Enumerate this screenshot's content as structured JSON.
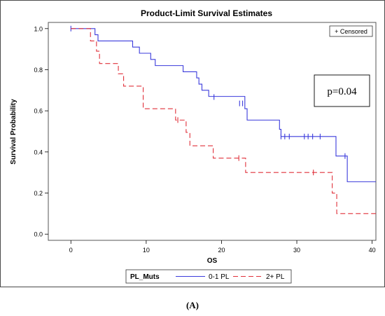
{
  "panel_label": "(A)",
  "chart_data": {
    "type": "line",
    "title": "Product-Limit Survival Estimates",
    "xlabel": "OS",
    "ylabel": "Survival Probability",
    "xlim": [
      -3,
      40.5
    ],
    "ylim": [
      -0.03,
      1.03
    ],
    "x_ticks": [
      0,
      10,
      20,
      30,
      40
    ],
    "x_tick_labels": [
      "0",
      "10",
      "20",
      "30",
      "40"
    ],
    "y_ticks": [
      0.0,
      0.2,
      0.4,
      0.6,
      0.8,
      1.0
    ],
    "y_tick_labels": [
      "0.0",
      "0.2",
      "0.4",
      "0.6",
      "0.8",
      "1.0"
    ],
    "grid": false,
    "censored_legend": "+ Censored",
    "annotation": "p=0.04",
    "legend": {
      "title": "PL_Muts",
      "position": "bottom"
    },
    "series": [
      {
        "name": "0-1 PL",
        "color": "#3b3bdc",
        "dash": "solid",
        "steps": [
          [
            0,
            1.0
          ],
          [
            3.2,
            0.97
          ],
          [
            3.6,
            0.94
          ],
          [
            8.2,
            0.91
          ],
          [
            9.1,
            0.88
          ],
          [
            10.6,
            0.85
          ],
          [
            11.2,
            0.82
          ],
          [
            14.9,
            0.79
          ],
          [
            16.7,
            0.76
          ],
          [
            17.0,
            0.73
          ],
          [
            17.4,
            0.7
          ],
          [
            18.3,
            0.67
          ],
          [
            23.1,
            0.61
          ],
          [
            23.4,
            0.555
          ],
          [
            27.7,
            0.51
          ],
          [
            27.9,
            0.475
          ],
          [
            35.2,
            0.38
          ],
          [
            36.7,
            0.255
          ],
          [
            40.5,
            0.255
          ]
        ],
        "censored": [
          [
            0,
            1.0
          ],
          [
            19.0,
            0.667
          ],
          [
            22.4,
            0.636
          ],
          [
            22.8,
            0.636
          ],
          [
            27.9,
            0.475
          ],
          [
            28.4,
            0.475
          ],
          [
            29.0,
            0.475
          ],
          [
            31.0,
            0.475
          ],
          [
            31.5,
            0.475
          ],
          [
            32.1,
            0.475
          ],
          [
            33.1,
            0.475
          ],
          [
            36.4,
            0.38
          ]
        ]
      },
      {
        "name": "2+ PL",
        "color": "#e0303a",
        "dash": "dashed",
        "steps": [
          [
            0,
            1.0
          ],
          [
            2.6,
            0.94
          ],
          [
            3.4,
            0.89
          ],
          [
            3.8,
            0.83
          ],
          [
            6.3,
            0.78
          ],
          [
            7.0,
            0.72
          ],
          [
            9.6,
            0.61
          ],
          [
            13.9,
            0.555
          ],
          [
            15.3,
            0.495
          ],
          [
            15.8,
            0.43
          ],
          [
            18.9,
            0.37
          ],
          [
            23.2,
            0.3
          ],
          [
            34.7,
            0.2
          ],
          [
            35.3,
            0.1
          ],
          [
            40.5,
            0.1
          ]
        ],
        "censored": [
          [
            14.2,
            0.555
          ],
          [
            22.3,
            0.37
          ],
          [
            32.2,
            0.3
          ]
        ]
      }
    ]
  }
}
